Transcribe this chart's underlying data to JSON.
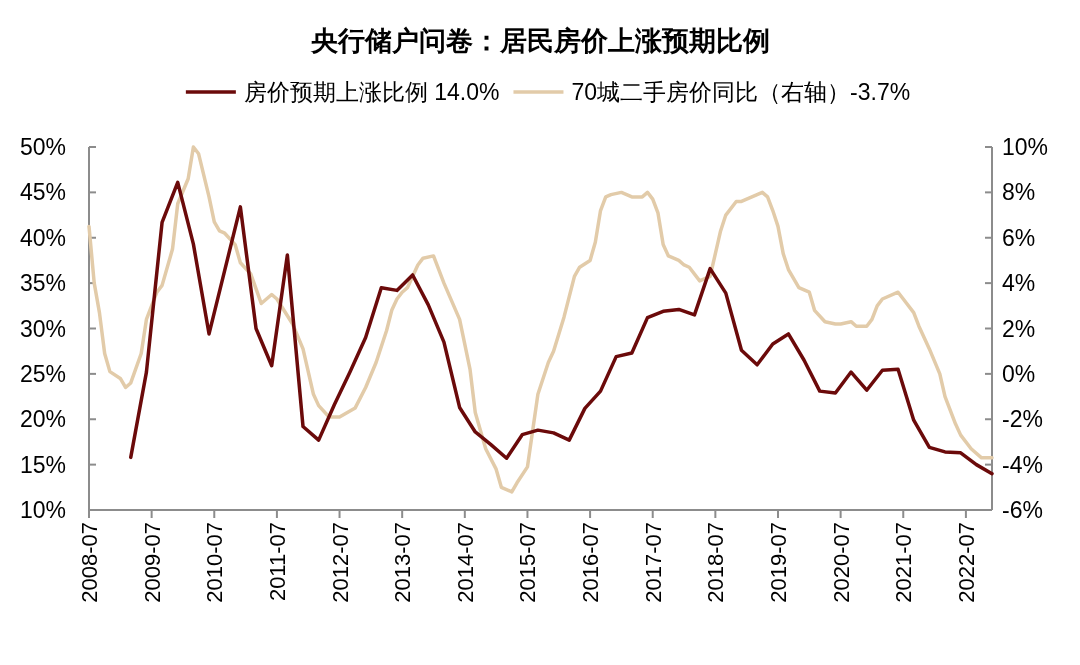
{
  "chart_data": {
    "type": "line",
    "title": "央行储户问卷：居民房价上涨预期比例",
    "legend": "top",
    "grid": false,
    "marker": "none",
    "line_style": "solid",
    "xlim": [
      "2008-07",
      "2022-12"
    ],
    "xticks": [
      "2008-07",
      "2009-07",
      "2010-07",
      "2011-07",
      "2012-07",
      "2013-07",
      "2014-07",
      "2015-07",
      "2016-07",
      "2017-07",
      "2018-07",
      "2019-07",
      "2020-07",
      "2021-07",
      "2022-07"
    ],
    "ylim": [
      10,
      50
    ],
    "yticks": [
      {
        "value": 10,
        "label": "10%"
      },
      {
        "value": 15,
        "label": "15%"
      },
      {
        "value": 20,
        "label": "20%"
      },
      {
        "value": 25,
        "label": "25%"
      },
      {
        "value": 30,
        "label": "30%"
      },
      {
        "value": 35,
        "label": "35%"
      },
      {
        "value": 40,
        "label": "40%"
      },
      {
        "value": 45,
        "label": "45%"
      },
      {
        "value": 50,
        "label": "50%"
      }
    ],
    "y2lim": [
      -6,
      10
    ],
    "y2ticks": [
      {
        "value": -6,
        "label": "-6%"
      },
      {
        "value": -4,
        "label": "-4%"
      },
      {
        "value": -2,
        "label": "-2%"
      },
      {
        "value": 0,
        "label": "0%"
      },
      {
        "value": 2,
        "label": "2%"
      },
      {
        "value": 4,
        "label": "4%"
      },
      {
        "value": 6,
        "label": "6%"
      },
      {
        "value": 8,
        "label": "8%"
      },
      {
        "value": 10,
        "label": "10%"
      }
    ],
    "series": [
      {
        "name": "房价预期上涨比例  14.0%",
        "color": "#6b0a0a",
        "axis": "y",
        "x": [
          "2009-03",
          "2009-06",
          "2009-09",
          "2009-12",
          "2010-03",
          "2010-06",
          "2010-09",
          "2010-12",
          "2011-03",
          "2011-06",
          "2011-09",
          "2011-12",
          "2012-03",
          "2012-06",
          "2012-09",
          "2012-12",
          "2013-03",
          "2013-06",
          "2013-09",
          "2013-12",
          "2014-03",
          "2014-06",
          "2014-09",
          "2014-12",
          "2015-03",
          "2015-06",
          "2015-09",
          "2015-12",
          "2016-03",
          "2016-06",
          "2016-09",
          "2016-12",
          "2017-03",
          "2017-06",
          "2017-09",
          "2017-12",
          "2018-03",
          "2018-06",
          "2018-09",
          "2018-12",
          "2019-03",
          "2019-06",
          "2019-09",
          "2019-12",
          "2020-03",
          "2020-06",
          "2020-09",
          "2020-12",
          "2021-03",
          "2021-06",
          "2021-09",
          "2021-12",
          "2022-03",
          "2022-06",
          "2022-09",
          "2022-12"
        ],
        "values": [
          15.8,
          25.2,
          41.7,
          46.1,
          39.3,
          29.4,
          36.4,
          43.4,
          30.0,
          25.9,
          38.1,
          19.2,
          17.7,
          21.6,
          25.2,
          29.0,
          34.5,
          34.2,
          35.9,
          32.6,
          28.5,
          21.3,
          18.6,
          17.2,
          15.7,
          18.3,
          18.8,
          18.5,
          17.7,
          21.2,
          23.1,
          26.9,
          27.3,
          31.2,
          31.9,
          32.1,
          31.5,
          36.6,
          33.9,
          27.6,
          26.0,
          28.3,
          29.4,
          26.5,
          23.1,
          22.9,
          25.2,
          23.2,
          25.4,
          25.5,
          19.9,
          16.9,
          16.4,
          16.3,
          15.0,
          14.0
        ]
      },
      {
        "name": "70城二手房价同比（右轴）-3.7%",
        "color": "#e2cba9",
        "axis": "y2",
        "x": [
          "2008-07",
          "2008-08",
          "2008-09",
          "2008-10",
          "2008-11",
          "2009-01",
          "2009-02",
          "2009-03",
          "2009-05",
          "2009-06",
          "2009-08",
          "2009-09",
          "2009-11",
          "2009-12",
          "2010-02",
          "2010-03",
          "2010-04",
          "2010-06",
          "2010-07",
          "2010-08",
          "2010-09",
          "2010-11",
          "2010-12",
          "2011-02",
          "2011-04",
          "2011-06",
          "2011-07",
          "2011-10",
          "2011-12",
          "2012-02",
          "2012-03",
          "2012-05",
          "2012-07",
          "2012-10",
          "2012-12",
          "2013-02",
          "2013-04",
          "2013-05",
          "2013-06",
          "2013-07",
          "2013-08",
          "2013-10",
          "2013-11",
          "2014-01",
          "2014-03",
          "2014-06",
          "2014-08",
          "2014-09",
          "2014-11",
          "2015-01",
          "2015-02",
          "2015-04",
          "2015-05",
          "2015-07",
          "2015-09",
          "2015-11",
          "2015-12",
          "2016-02",
          "2016-04",
          "2016-05",
          "2016-07",
          "2016-08",
          "2016-09",
          "2016-10",
          "2016-11",
          "2017-01",
          "2017-03",
          "2017-05",
          "2017-06",
          "2017-07",
          "2017-08",
          "2017-09",
          "2017-10",
          "2017-12",
          "2018-01",
          "2018-02",
          "2018-04",
          "2018-06",
          "2018-07",
          "2018-08",
          "2018-09",
          "2018-11",
          "2018-12",
          "2019-02",
          "2019-04",
          "2019-05",
          "2019-06",
          "2019-07",
          "2019-08",
          "2019-09",
          "2019-11",
          "2020-01",
          "2020-02",
          "2020-04",
          "2020-06",
          "2020-07",
          "2020-09",
          "2020-10",
          "2020-12",
          "2021-01",
          "2021-02",
          "2021-03",
          "2021-06",
          "2021-07",
          "2021-09",
          "2021-10",
          "2021-12",
          "2022-02",
          "2022-03",
          "2022-05",
          "2022-06",
          "2022-08",
          "2022-10",
          "2022-11",
          "2022-12"
        ],
        "values": [
          6.5,
          4.0,
          2.7,
          0.9,
          0.1,
          -0.2,
          -0.6,
          -0.4,
          0.9,
          2.4,
          3.6,
          3.9,
          5.5,
          7.5,
          8.6,
          10.0,
          9.7,
          7.8,
          6.7,
          6.3,
          6.2,
          5.7,
          4.9,
          4.4,
          3.1,
          3.5,
          3.3,
          2.2,
          1.1,
          -0.9,
          -1.4,
          -1.9,
          -1.9,
          -1.5,
          -0.6,
          0.5,
          1.9,
          2.8,
          3.3,
          3.6,
          3.8,
          4.8,
          5.1,
          5.2,
          4.0,
          2.4,
          0.2,
          -1.7,
          -3.3,
          -4.2,
          -5.0,
          -5.2,
          -4.8,
          -4.1,
          -0.9,
          0.5,
          1.0,
          2.5,
          4.3,
          4.7,
          5.0,
          5.8,
          7.2,
          7.8,
          7.9,
          8.0,
          7.8,
          7.8,
          8.0,
          7.7,
          7.1,
          5.7,
          5.2,
          5.0,
          4.8,
          4.7,
          4.1,
          4.3,
          5.3,
          6.3,
          7.0,
          7.6,
          7.6,
          7.8,
          8.0,
          7.8,
          7.2,
          6.5,
          5.3,
          4.6,
          3.8,
          3.6,
          2.8,
          2.3,
          2.2,
          2.2,
          2.3,
          2.1,
          2.1,
          2.4,
          3.0,
          3.3,
          3.6,
          3.3,
          2.7,
          2.1,
          1.1,
          0.0,
          -1.0,
          -2.2,
          -2.7,
          -3.3,
          -3.7,
          -3.7,
          -3.7
        ]
      }
    ]
  }
}
